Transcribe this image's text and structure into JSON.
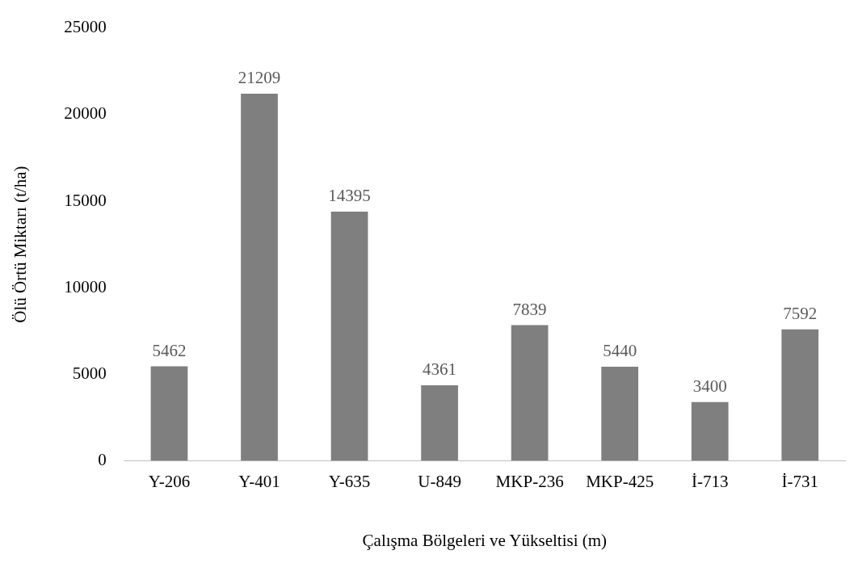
{
  "chart_data": {
    "type": "bar",
    "xlabel": "Çalışma Bölgeleri ve Yükseltisi (m)",
    "ylabel": "Ölü Örtü Miktarı (t/ha)",
    "categories": [
      "Y-206",
      "Y-401",
      "Y-635",
      "U-849",
      "MKP-236",
      "MKP-425",
      "İ-713",
      "İ-731"
    ],
    "values": [
      5462,
      21209,
      14395,
      4361,
      7839,
      5440,
      3400,
      7592
    ],
    "color": "#7f7f7f",
    "ylim": [
      0,
      25000
    ],
    "yticks": [
      0,
      5000,
      10000,
      15000,
      20000,
      25000
    ],
    "grid": false,
    "legend": false,
    "data_labels": true
  }
}
